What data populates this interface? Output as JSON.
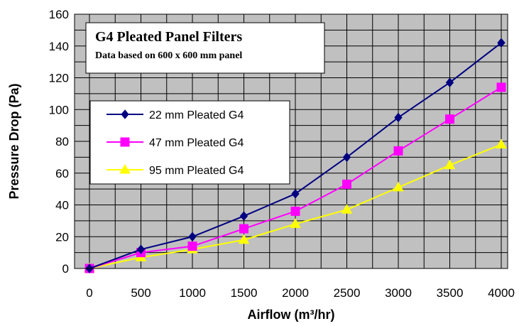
{
  "chart_data": {
    "type": "line",
    "x": [
      0,
      500,
      1000,
      1500,
      2000,
      2500,
      3000,
      3500,
      4000
    ],
    "xlabel": "Airflow (m³/hr)",
    "ylabel": "Pressure Drop (Pa)",
    "xlim": [
      0,
      4000
    ],
    "ylim": [
      0,
      160
    ],
    "x_ticks": [
      "0",
      "500",
      "1000",
      "1500",
      "2000",
      "2500",
      "3000",
      "3500",
      "4000"
    ],
    "y_ticks": [
      "0",
      "20",
      "40",
      "60",
      "80",
      "100",
      "120",
      "140",
      "160"
    ],
    "grid": true,
    "plot_background": "#c0c0c0",
    "annotation": {
      "title": "G4 Pleated Panel Filters",
      "subtitle": "Data based on 600 x 600 mm panel"
    },
    "legend_position": "left",
    "series": [
      {
        "name": "22 mm Pleated G4",
        "marker": "diamond",
        "color": "#000080",
        "values": [
          0,
          12,
          20,
          33,
          47,
          70,
          95,
          117,
          142
        ]
      },
      {
        "name": "47 mm Pleated G4",
        "marker": "square",
        "color": "#ff00ff",
        "values": [
          0,
          10,
          14,
          25,
          36,
          53,
          74,
          94,
          114
        ]
      },
      {
        "name": "95 mm Pleated G4",
        "marker": "triangle",
        "color": "#ffff00",
        "values": [
          0,
          7,
          12,
          18,
          28,
          37,
          51,
          65,
          78
        ]
      }
    ]
  }
}
